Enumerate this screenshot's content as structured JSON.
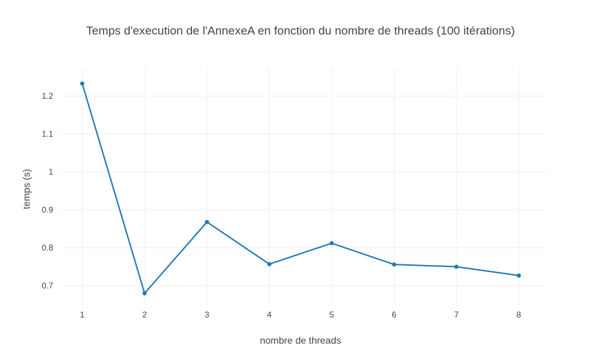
{
  "chart_data": {
    "type": "line",
    "title": "Temps d'execution de l'AnnexeA en fonction du nombre de threads (100 itérations)",
    "xlabel": "nombre de threads",
    "ylabel": "temps (s)",
    "x": [
      1,
      2,
      3,
      4,
      5,
      6,
      7,
      8
    ],
    "series": [
      {
        "values": [
          1.233,
          0.68,
          0.868,
          0.757,
          0.812,
          0.756,
          0.75,
          0.727
        ],
        "color": "#1f77b4"
      }
    ],
    "x_ticks": [
      "1",
      "2",
      "3",
      "4",
      "5",
      "6",
      "7",
      "8"
    ],
    "y_ticks": [
      {
        "value": 0.7,
        "label": "0.7"
      },
      {
        "value": 0.8,
        "label": "0.8"
      },
      {
        "value": 0.9,
        "label": "0.9"
      },
      {
        "value": 1.0,
        "label": "1"
      },
      {
        "value": 1.1,
        "label": "1.1"
      },
      {
        "value": 1.2,
        "label": "1.2"
      }
    ],
    "xlim": [
      1,
      8
    ],
    "ylim": [
      0.65,
      1.25
    ],
    "grid": true,
    "markers": true
  }
}
